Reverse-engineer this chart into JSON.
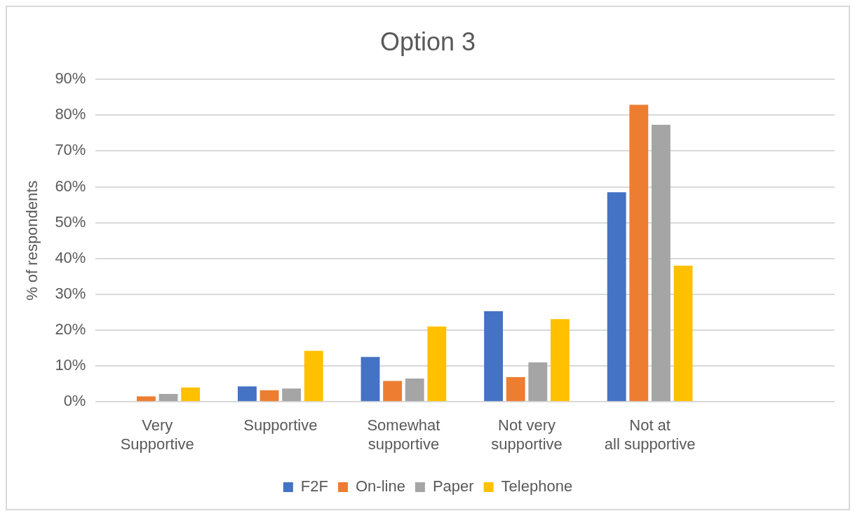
{
  "chart_data": {
    "type": "bar",
    "title": "Option 3",
    "ylabel": "% of respondents",
    "categories": [
      "Very Supportive",
      "Supportive",
      "Somewhat supportive",
      "Not very supportive",
      "Not at all supportive",
      null
    ],
    "series": [
      {
        "name": "F2F",
        "color": "#4472c4",
        "values": [
          0,
          4.3,
          12.5,
          25.3,
          58.5,
          null
        ]
      },
      {
        "name": "On-line",
        "color": "#ed7d31",
        "values": [
          1.5,
          3.2,
          5.8,
          6.9,
          82.9,
          null
        ]
      },
      {
        "name": "Paper",
        "color": "#a5a5a5",
        "values": [
          2.2,
          3.7,
          6.5,
          11,
          77.3,
          null
        ]
      },
      {
        "name": "Telephone",
        "color": "#ffc000",
        "values": [
          4,
          14.2,
          21,
          23.1,
          38,
          null
        ]
      }
    ],
    "ylim": [
      0,
      90
    ],
    "yticks": [
      {
        "value": 0,
        "label": "0%"
      },
      {
        "value": 10,
        "label": "10%"
      },
      {
        "value": 20,
        "label": "20%"
      },
      {
        "value": 30,
        "label": "30%"
      },
      {
        "value": 40,
        "label": "40%"
      },
      {
        "value": 50,
        "label": "50%"
      },
      {
        "value": 60,
        "label": "60%"
      },
      {
        "value": 70,
        "label": "70%"
      },
      {
        "value": 80,
        "label": "80%"
      },
      {
        "value": 90,
        "label": "90%"
      }
    ],
    "grid": "y",
    "legend": "bottom"
  }
}
